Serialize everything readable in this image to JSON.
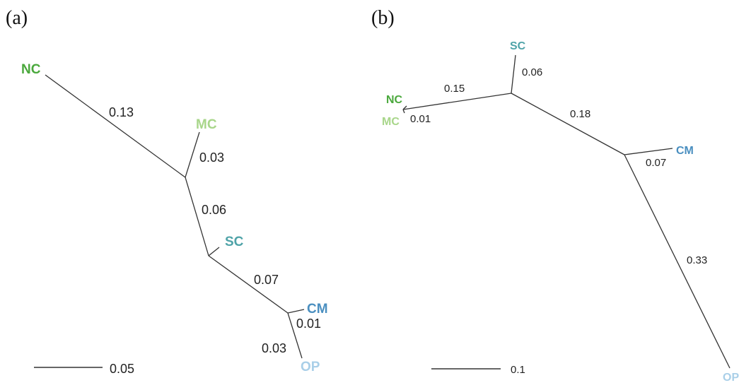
{
  "colors": {
    "NC": "#4aa83c",
    "MC": "#a8d68a",
    "SC": "#4fa3a8",
    "CM": "#4a8fc0",
    "OP": "#a9cfe8"
  },
  "panel_a": {
    "label": "(a)",
    "leaves": {
      "NC": "NC",
      "MC": "MC",
      "SC": "SC",
      "CM": "CM",
      "OP": "OP"
    },
    "branch_lengths": {
      "NC": "0.13",
      "MC": "0.03",
      "internal": "0.06",
      "SC": "0.07",
      "CM": "0.01",
      "OP": "0.03"
    },
    "scale": "0.05"
  },
  "panel_b": {
    "label": "(b)",
    "leaves": {
      "NC": "NC",
      "MC": "MC",
      "SC": "SC",
      "CM": "CM",
      "OP": "OP"
    },
    "branch_lengths": {
      "NC_MC": "0.15",
      "MC": "0.01",
      "SC": "0.06",
      "internal": "0.18",
      "CM": "0.07",
      "OP": "0.33"
    },
    "scale": "0.1"
  }
}
